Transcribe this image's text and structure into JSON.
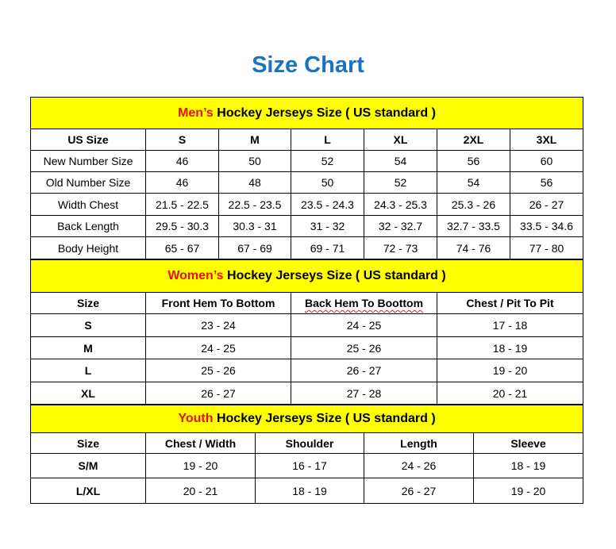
{
  "title": "Size Chart",
  "colors": {
    "title": "#1a73c0",
    "section_bg": "#ffff00",
    "highlight": "#e8100c"
  },
  "mens": {
    "heading_highlight": "Men’s",
    "heading_rest": " Hockey Jerseys Size ( US standard )",
    "columns": [
      "US Size",
      "S",
      "M",
      "L",
      "XL",
      "2XL",
      "3XL"
    ],
    "rows": [
      [
        "New Number Size",
        "46",
        "50",
        "52",
        "54",
        "56",
        "60"
      ],
      [
        "Old Number Size",
        "46",
        "48",
        "50",
        "52",
        "54",
        "56"
      ],
      [
        "Width Chest",
        "21.5 - 22.5",
        "22.5 - 23.5",
        "23.5 - 24.3",
        "24.3 - 25.3",
        "25.3 - 26",
        "26 - 27"
      ],
      [
        "Back Length",
        "29.5 - 30.3",
        "30.3 - 31",
        "31 - 32",
        "32 - 32.7",
        "32.7 - 33.5",
        "33.5 - 34.6"
      ],
      [
        "Body Height",
        "65 - 67",
        "67 - 69",
        "69 - 71",
        "72 - 73",
        "74 - 76",
        "77 - 80"
      ]
    ]
  },
  "womens": {
    "heading_highlight": "Women’s",
    "heading_rest": " Hockey Jerseys Size ( US standard )",
    "columns": [
      "Size",
      "Front Hem To Bottom",
      "Back Hem To Boottom",
      "Chest / Pit To Pit"
    ],
    "rows": [
      [
        "S",
        "23 - 24",
        "24 - 25",
        "17 - 18"
      ],
      [
        "M",
        "24 - 25",
        "25 - 26",
        "18 - 19"
      ],
      [
        "L",
        "25 - 26",
        "26 - 27",
        "19 - 20"
      ],
      [
        "XL",
        "26 - 27",
        "27 - 28",
        "20 - 21"
      ]
    ]
  },
  "youth": {
    "heading_highlight": "Youth",
    "heading_rest": " Hockey Jerseys Size ( US standard )",
    "columns": [
      "Size",
      "Chest / Width",
      "Shoulder",
      "Length",
      "Sleeve"
    ],
    "rows": [
      [
        "S/M",
        "19 - 20",
        "16 - 17",
        "24 - 26",
        "18 - 19"
      ],
      [
        "L/XL",
        "20 - 21",
        "18 - 19",
        "26 - 27",
        "19 - 20"
      ]
    ]
  }
}
